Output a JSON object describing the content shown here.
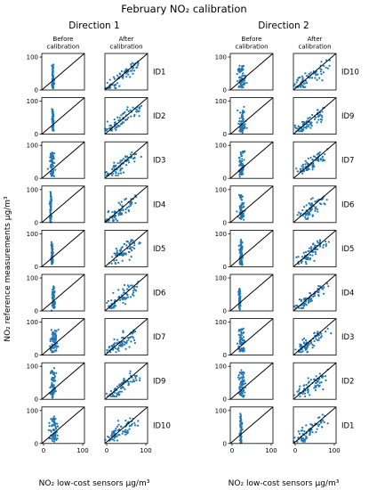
{
  "figure": {
    "title": "February NO₂ calibration",
    "y_label": "NO₂ reference measurements μg/m³",
    "x_label": "NO₂ low-cost sensors μg/m³",
    "point_color": "#1f77b4",
    "line_color": "#000000"
  },
  "chart_data": {
    "type": "scatter",
    "xlim": [
      0,
      100
    ],
    "ylim": [
      0,
      100
    ],
    "x_ticks": [
      "0",
      "100"
    ],
    "y_ticks": [
      "0",
      "100"
    ],
    "reference_line": "y = x",
    "grid": false,
    "directions": [
      {
        "title": "Direction 1",
        "column_headers": [
          "Before\ncalibration",
          "After\ncalibration"
        ],
        "rows": [
          {
            "id": "ID1",
            "before": {
              "x_center": 26,
              "x_spread": 2,
              "y_range": [
                8,
                68
              ]
            },
            "after": {
              "x_range": [
                8,
                80
              ],
              "y_range": [
                5,
                70
              ]
            }
          },
          {
            "id": "ID2",
            "before": {
              "x_center": 26,
              "x_spread": 2,
              "y_range": [
                15,
                65
              ]
            },
            "after": {
              "x_range": [
                10,
                80
              ],
              "y_range": [
                10,
                70
              ]
            }
          },
          {
            "id": "ID3",
            "before": {
              "x_center": 24,
              "x_spread": 6,
              "y_range": [
                8,
                70
              ]
            },
            "after": {
              "x_range": [
                12,
                72
              ],
              "y_range": [
                8,
                70
              ]
            }
          },
          {
            "id": "ID4",
            "before": {
              "x_center": 21,
              "x_spread": 2,
              "y_range": [
                5,
                80
              ]
            },
            "after": {
              "x_range": [
                10,
                70
              ],
              "y_range": [
                5,
                72
              ]
            }
          },
          {
            "id": "ID5",
            "before": {
              "x_center": 24,
              "x_spread": 2,
              "y_range": [
                8,
                65
              ]
            },
            "after": {
              "x_range": [
                18,
                72
              ],
              "y_range": [
                8,
                70
              ]
            }
          },
          {
            "id": "ID6",
            "before": {
              "x_center": 27,
              "x_spread": 4,
              "y_range": [
                8,
                68
              ]
            },
            "after": {
              "x_range": [
                12,
                72
              ],
              "y_range": [
                8,
                70
              ]
            }
          },
          {
            "id": "ID7",
            "before": {
              "x_center": 28,
              "x_spread": 8,
              "y_range": [
                10,
                68
              ]
            },
            "after": {
              "x_range": [
                14,
                72
              ],
              "y_range": [
                8,
                70
              ]
            }
          },
          {
            "id": "ID9",
            "before": {
              "x_center": 26,
              "x_spread": 6,
              "y_range": [
                10,
                80
              ]
            },
            "after": {
              "x_range": [
                15,
                72
              ],
              "y_range": [
                8,
                72
              ]
            }
          },
          {
            "id": "ID10",
            "before": {
              "x_center": 28,
              "x_spread": 10,
              "y_range": [
                10,
                72
              ]
            },
            "after": {
              "x_range": [
                10,
                72
              ],
              "y_range": [
                8,
                72
              ]
            }
          }
        ]
      },
      {
        "title": "Direction 2",
        "column_headers": [
          "Before\ncalibration",
          "After\ncalibration"
        ],
        "rows": [
          {
            "id": "ID10",
            "before": {
              "x_center": 28,
              "x_spread": 10,
              "y_range": [
                10,
                70
              ]
            },
            "after": {
              "x_range": [
                10,
                80
              ],
              "y_range": [
                8,
                72
              ]
            }
          },
          {
            "id": "ID9",
            "before": {
              "x_center": 28,
              "x_spread": 8,
              "y_range": [
                10,
                70
              ]
            },
            "after": {
              "x_range": [
                15,
                72
              ],
              "y_range": [
                8,
                72
              ]
            }
          },
          {
            "id": "ID7",
            "before": {
              "x_center": 26,
              "x_spread": 6,
              "y_range": [
                10,
                80
              ]
            },
            "after": {
              "x_range": [
                20,
                70
              ],
              "y_range": [
                8,
                70
              ]
            }
          },
          {
            "id": "ID6",
            "before": {
              "x_center": 26,
              "x_spread": 6,
              "y_range": [
                10,
                75
              ]
            },
            "after": {
              "x_range": [
                20,
                72
              ],
              "y_range": [
                8,
                70
              ]
            }
          },
          {
            "id": "ID5",
            "before": {
              "x_center": 25,
              "x_spread": 4,
              "y_range": [
                8,
                72
              ]
            },
            "after": {
              "x_range": [
                18,
                70
              ],
              "y_range": [
                8,
                72
              ]
            }
          },
          {
            "id": "ID4",
            "before": {
              "x_center": 22,
              "x_spread": 2,
              "y_range": [
                10,
                60
              ]
            },
            "after": {
              "x_range": [
                12,
                72
              ],
              "y_range": [
                8,
                70
              ]
            }
          },
          {
            "id": "ID3",
            "before": {
              "x_center": 26,
              "x_spread": 7,
              "y_range": [
                10,
                75
              ]
            },
            "after": {
              "x_range": [
                15,
                72
              ],
              "y_range": [
                8,
                72
              ]
            }
          },
          {
            "id": "ID2",
            "before": {
              "x_center": 27,
              "x_spread": 7,
              "y_range": [
                10,
                75
              ]
            },
            "after": {
              "x_range": [
                15,
                72
              ],
              "y_range": [
                8,
                72
              ]
            }
          },
          {
            "id": "ID1",
            "before": {
              "x_center": 25,
              "x_spread": 2,
              "y_range": [
                5,
                80
              ]
            },
            "after": {
              "x_range": [
                12,
                72
              ],
              "y_range": [
                5,
                72
              ]
            }
          }
        ]
      }
    ]
  }
}
